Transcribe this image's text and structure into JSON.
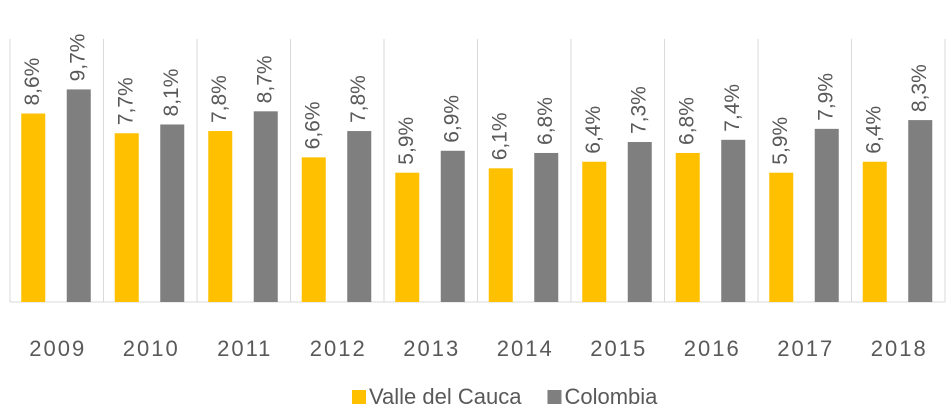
{
  "chart_data": {
    "type": "bar",
    "categories": [
      "2009",
      "2010",
      "2011",
      "2012",
      "2013",
      "2014",
      "2015",
      "2016",
      "2017",
      "2018"
    ],
    "series": [
      {
        "name": "Valle del Cauca",
        "color": "#FFC000",
        "values": [
          8.6,
          7.7,
          7.8,
          6.6,
          5.9,
          6.1,
          6.4,
          6.8,
          5.9,
          6.4
        ],
        "value_labels": [
          "8,6%",
          "7,7%",
          "7,8%",
          "6,6%",
          "5,9%",
          "6,1%",
          "6,4%",
          "6,8%",
          "5,9%",
          "6,4%"
        ]
      },
      {
        "name": "Colombia",
        "color": "#7F7F7F",
        "values": [
          9.7,
          8.1,
          8.7,
          7.8,
          6.9,
          6.8,
          7.3,
          7.4,
          7.9,
          8.3
        ],
        "value_labels": [
          "9,7%",
          "8,1%",
          "8,7%",
          "7,8%",
          "6,9%",
          "6,8%",
          "7,3%",
          "7,4%",
          "7,9%",
          "8,3%"
        ]
      }
    ],
    "ylim": [
      0,
      12
    ]
  }
}
